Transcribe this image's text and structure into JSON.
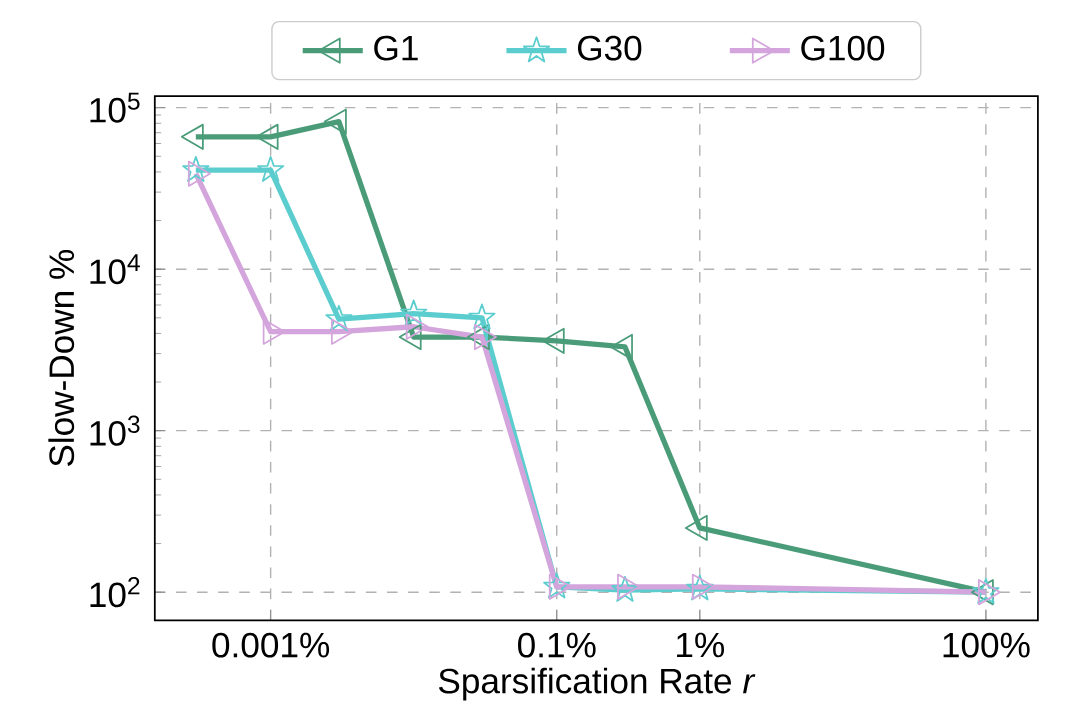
{
  "chart_data": {
    "type": "line",
    "xlabel": "Sparsification Rate *r*",
    "ylabel": "Slow-Down %",
    "x": [
      0.0003,
      0.001,
      0.003,
      0.01,
      0.03,
      0.1,
      0.3,
      1,
      100
    ],
    "series": [
      {
        "name": "G1",
        "color": "#4a9c79",
        "marker": "triangle",
        "values": [
          66000,
          66000,
          82000,
          3800,
          3800,
          3600,
          3300,
          250,
          100
        ]
      },
      {
        "name": "G30",
        "color": "#5bcdce",
        "marker": "star",
        "values": [
          41000,
          41000,
          4900,
          5300,
          5000,
          108,
          103,
          105,
          100
        ]
      },
      {
        "name": "G100",
        "color": "#d4a5dc",
        "marker": "triangle",
        "values": [
          39000,
          4100,
          4100,
          4400,
          3800,
          108,
          108,
          108,
          100
        ]
      }
    ],
    "log": "xy",
    "xlim": [
      0.000155,
      231
    ],
    "ylim": [
      67,
      118000
    ],
    "xticks": [
      {
        "value": 0.001,
        "label": "0.001%"
      },
      {
        "value": 0.1,
        "label": "0.1%"
      },
      {
        "value": 1,
        "label": "1%"
      },
      {
        "value": 100,
        "label": "100%"
      }
    ],
    "yticks": [
      {
        "value": 100,
        "label": "10$^{2}$"
      },
      {
        "value": 1000,
        "label": "10$^{3}$"
      },
      {
        "value": 10000,
        "label": "10$^{4}$"
      },
      {
        "value": 100000,
        "label": "10$^{5}$"
      }
    ],
    "grid": true,
    "legend": "top",
    "line_style": "solid"
  }
}
